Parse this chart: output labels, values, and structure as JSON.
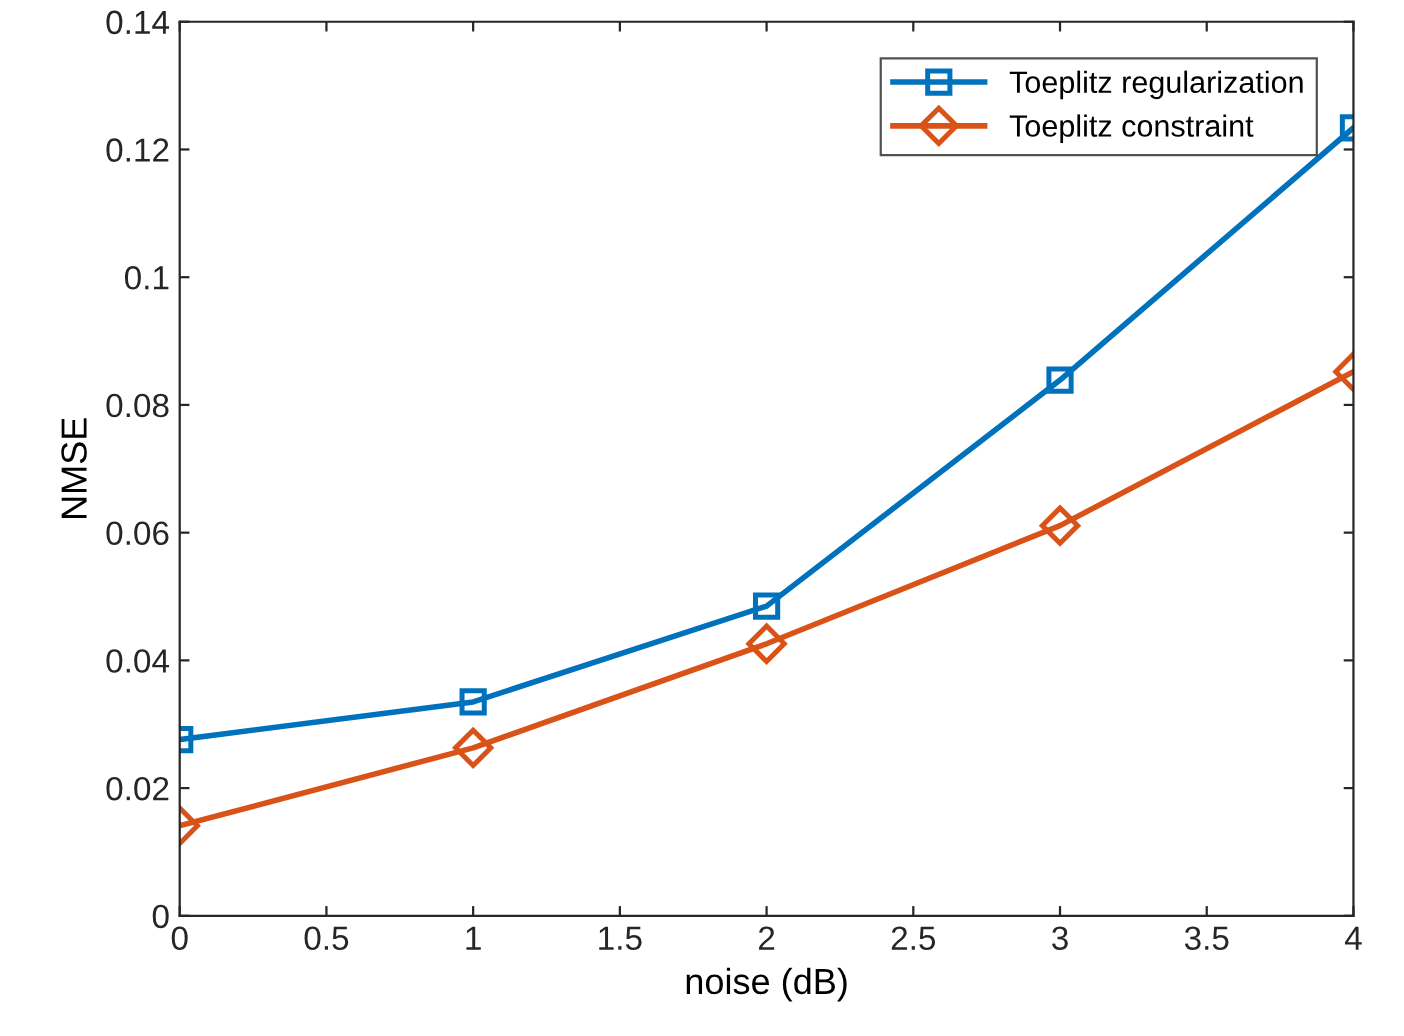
{
  "chart_data": {
    "type": "line",
    "xlabel": "noise (dB)",
    "ylabel": "NMSE",
    "x": [
      0,
      1,
      2,
      3,
      4
    ],
    "series": [
      {
        "name": "Toeplitz regularization",
        "color": "#0072bd",
        "marker": "square",
        "values": [
          0.0276,
          0.0335,
          0.0485,
          0.0839,
          0.1234
        ]
      },
      {
        "name": "Toeplitz constraint",
        "color": "#d95319",
        "marker": "diamond",
        "values": [
          0.0141,
          0.0263,
          0.0426,
          0.0611,
          0.0852
        ]
      }
    ],
    "xlim": [
      0,
      4
    ],
    "xticks": [
      0,
      0.5,
      1,
      1.5,
      2,
      2.5,
      3,
      3.5,
      4
    ],
    "ylim": [
      0,
      0.14
    ],
    "yticks": [
      0,
      0.02,
      0.04,
      0.06,
      0.08,
      0.1,
      0.12,
      0.14
    ],
    "legend": "top right",
    "line_style": "solid"
  }
}
